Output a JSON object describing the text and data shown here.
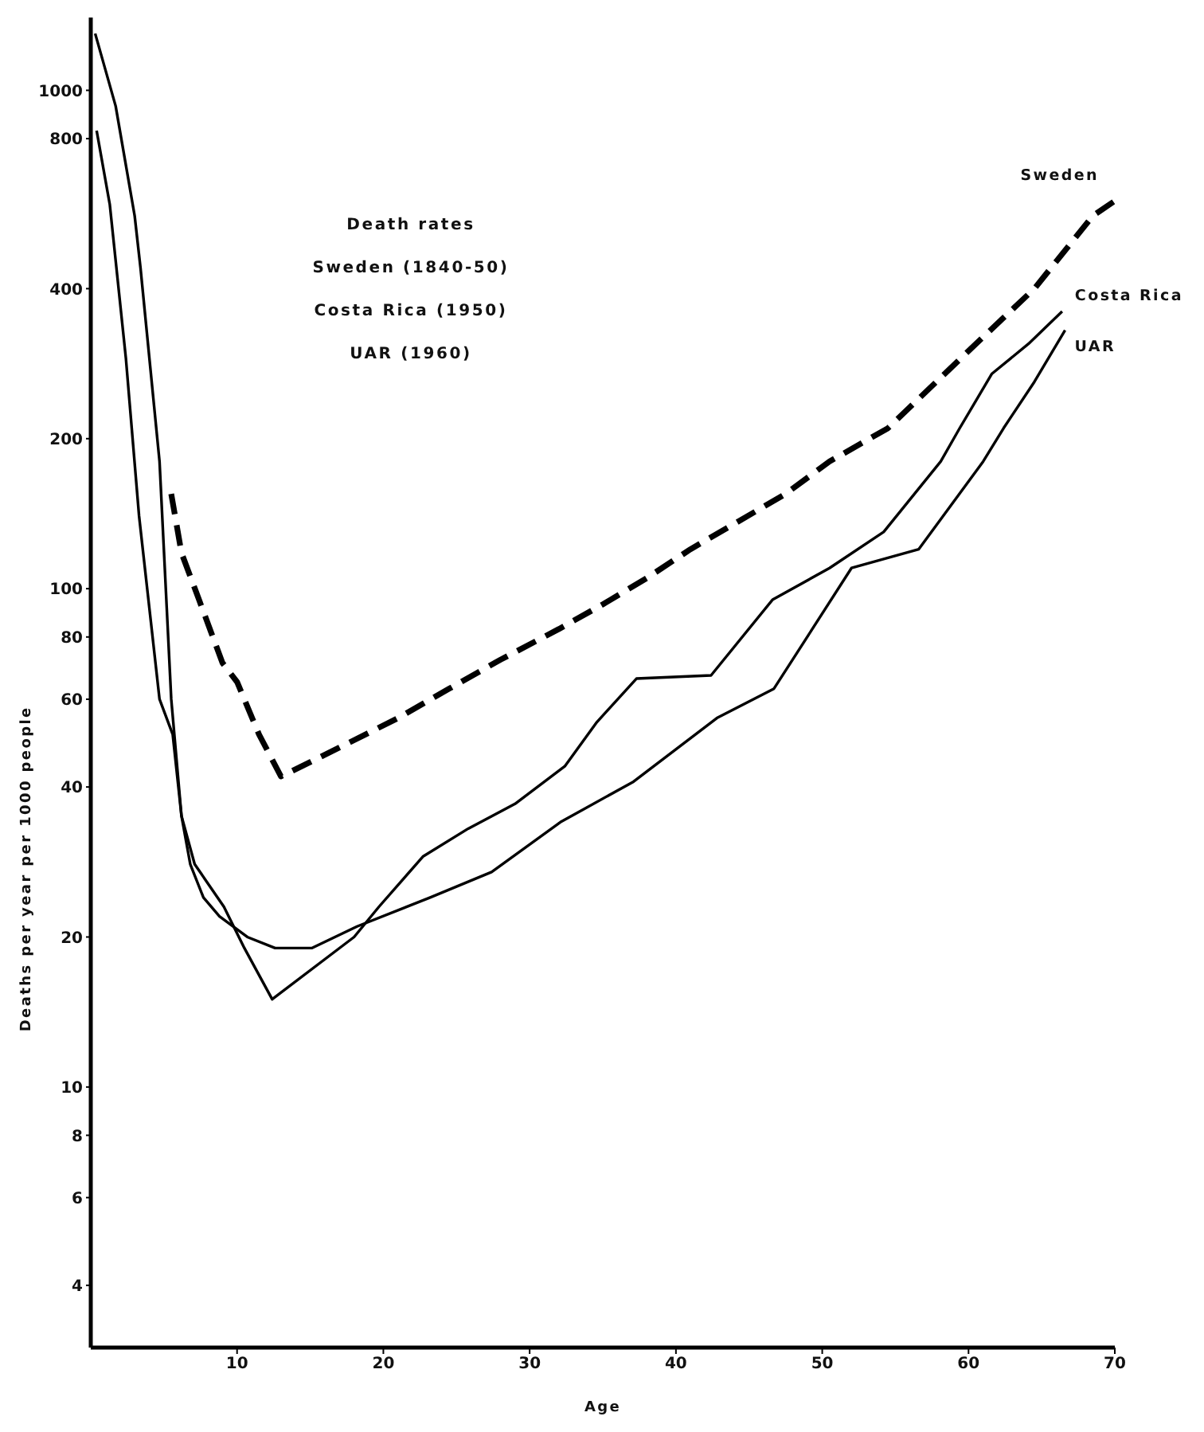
{
  "chart_data": {
    "type": "line",
    "title": "Death rates",
    "annotations": [
      "Sweden (1840-50)",
      "Costa Rica (1950)",
      "UAR (1960)"
    ],
    "xlabel": "Age",
    "ylabel": "Deaths per year per 1000 people",
    "xlim": [
      0,
      70
    ],
    "xticks": [
      10,
      20,
      30,
      40,
      50,
      60,
      70
    ],
    "ylim": [
      3,
      1400
    ],
    "yticks": [
      4,
      6,
      8,
      10,
      20,
      40,
      60,
      80,
      100,
      200,
      400,
      800,
      1000
    ],
    "log": "y",
    "legend": false,
    "marker": "none",
    "series": [
      {
        "name": "Sweden",
        "color": "#000000",
        "line_style": "dashed",
        "x": [
          5.5,
          6.2,
          7.4,
          9,
          10,
          11.5,
          13,
          17,
          21,
          24.5,
          28,
          32,
          35,
          38,
          41,
          44,
          47.5,
          50.5,
          54.5,
          60,
          64.5,
          68.5,
          70
        ],
        "values": [
          155,
          118,
          95,
          71,
          65,
          51,
          42,
          48,
          55,
          63,
          72,
          83,
          93,
          105,
          120,
          135,
          155,
          180,
          210,
          300,
          400,
          560,
          600
        ]
      },
      {
        "name": "Costa Rica",
        "color": "#000000",
        "line_style": "solid",
        "x": [
          0.3,
          1.7,
          3,
          3.4,
          4.7,
          5.5,
          6.2,
          7.1,
          9.1,
          10.5,
          12.4,
          18,
          19.7,
          22.7,
          25.8,
          29,
          32.4,
          34.6,
          37.3,
          42.4,
          46.6,
          50.5,
          54.2,
          58.1,
          59.4,
          61.6,
          64.1,
          66.4
        ],
        "values": [
          1300,
          930,
          560,
          440,
          180,
          60,
          35,
          28,
          23,
          19,
          15,
          20,
          23,
          29,
          33,
          37,
          44,
          54,
          66,
          67,
          95,
          110,
          130,
          180,
          210,
          270,
          310,
          360
        ]
      },
      {
        "name": "UAR",
        "color": "#000000",
        "line_style": "solid",
        "x": [
          0.4,
          1.3,
          2.4,
          3.3,
          4.7,
          5.6,
          6.2,
          6.8,
          7.7,
          8.8,
          10.7,
          12.6,
          15.1,
          18.2,
          23.2,
          27.4,
          32.1,
          37.1,
          42.8,
          46.7,
          52,
          56.6,
          61,
          62.4,
          64.5,
          66.6
        ],
        "values": [
          830,
          590,
          290,
          140,
          60,
          51,
          35,
          28,
          24,
          22,
          20,
          19,
          19,
          21,
          24,
          27,
          34,
          41,
          55,
          63,
          110,
          120,
          180,
          210,
          260,
          330
        ]
      }
    ]
  }
}
